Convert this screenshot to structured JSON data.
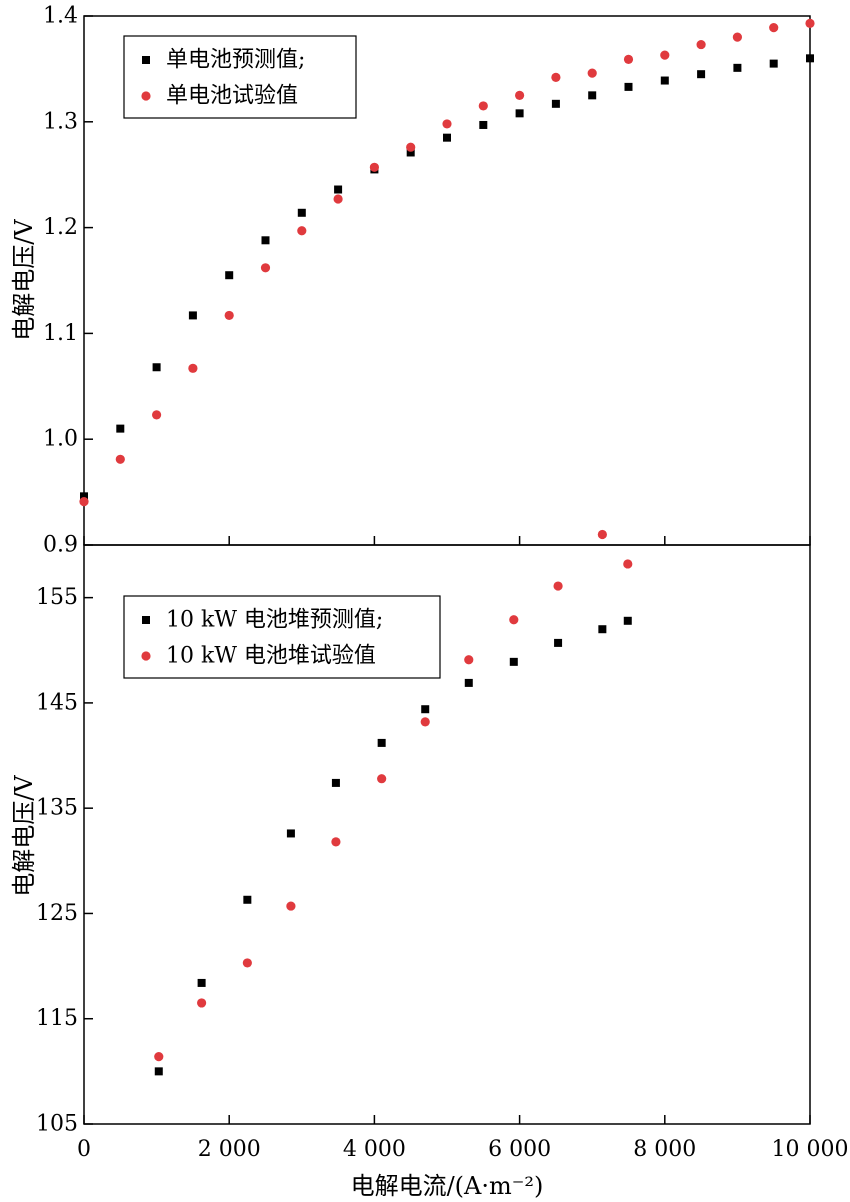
{
  "chart_data": [
    {
      "type": "scatter",
      "ylabel": "电解电压/V",
      "xlim": [
        0,
        10000
      ],
      "ylim": [
        0.9,
        1.4
      ],
      "yticks": [
        0.9,
        1.0,
        1.1,
        1.2,
        1.3,
        1.4
      ],
      "ytick_labels": [
        "0.9",
        "1.0",
        "1.1",
        "1.2",
        "1.3",
        "1.4"
      ],
      "legend_position": "top-left",
      "series": [
        {
          "name": "单电池预测值;",
          "marker": "square",
          "color": "#000000",
          "x": [
            0,
            500,
            1000,
            1500,
            2000,
            2500,
            3000,
            3500,
            4000,
            4500,
            5000,
            5500,
            6000,
            6500,
            7000,
            7500,
            8000,
            8500,
            9000,
            9500,
            10000
          ],
          "y": [
            0.946,
            1.01,
            1.068,
            1.117,
            1.155,
            1.188,
            1.214,
            1.236,
            1.255,
            1.271,
            1.285,
            1.297,
            1.308,
            1.317,
            1.325,
            1.333,
            1.339,
            1.345,
            1.351,
            1.355,
            1.36
          ]
        },
        {
          "name": "单电池试验值",
          "marker": "circle",
          "color": "#e03a3e",
          "x": [
            0,
            500,
            1000,
            1500,
            2000,
            2500,
            3000,
            3500,
            4000,
            4500,
            5000,
            5500,
            6000,
            6500,
            7000,
            7500,
            8000,
            8500,
            9000,
            9500,
            10000
          ],
          "y": [
            0.941,
            0.981,
            1.023,
            1.067,
            1.117,
            1.162,
            1.197,
            1.227,
            1.257,
            1.276,
            1.298,
            1.315,
            1.325,
            1.342,
            1.346,
            1.359,
            1.363,
            1.373,
            1.38,
            1.389,
            1.393
          ]
        }
      ]
    },
    {
      "type": "scatter",
      "xlabel": "电解电流/(A·m⁻²)",
      "ylabel": "电解电压/V",
      "xlim": [
        0,
        10000
      ],
      "ylim": [
        105,
        160
      ],
      "xticks": [
        0,
        2000,
        4000,
        6000,
        8000,
        10000
      ],
      "xtick_labels": [
        "0",
        "2 000",
        "4 000",
        "6 000",
        "8 000",
        "10 000"
      ],
      "yticks": [
        105,
        115,
        125,
        135,
        145,
        155
      ],
      "ytick_labels": [
        "105",
        "115",
        "125",
        "135",
        "145",
        "155"
      ],
      "legend_position": "top-left",
      "series": [
        {
          "name": "10 kW 电池堆预测值;",
          "marker": "square",
          "color": "#000000",
          "x": [
            1030,
            1620,
            2250,
            2850,
            3470,
            4100,
            4700,
            5300,
            5920,
            6530,
            7140,
            7490
          ],
          "y": [
            110.0,
            118.4,
            126.3,
            132.6,
            137.4,
            141.2,
            144.4,
            146.9,
            148.9,
            150.7,
            152.0,
            152.8
          ]
        },
        {
          "name": "10 kW 电池堆试验值",
          "marker": "circle",
          "color": "#e03a3e",
          "x": [
            1030,
            1620,
            2250,
            2850,
            3470,
            4100,
            4700,
            5300,
            5920,
            6530,
            7140,
            7490
          ],
          "y": [
            111.4,
            116.5,
            120.3,
            125.7,
            131.8,
            137.8,
            143.2,
            149.1,
            152.9,
            156.1,
            161.0,
            158.2
          ]
        }
      ]
    }
  ]
}
